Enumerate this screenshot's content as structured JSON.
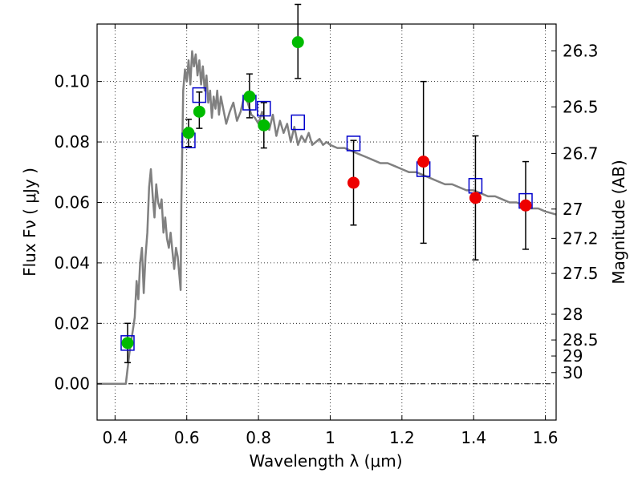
{
  "chart_data": {
    "type": "scatter",
    "xlabel": "Wavelength  λ (μm)",
    "ylabel_left": "Flux  Fν  ( μJy )",
    "ylabel_right": "Magnitude (AB)",
    "xlim": [
      0.35,
      1.63
    ],
    "ylim": [
      -0.012,
      0.119
    ],
    "grid": true,
    "x_ticks": [
      0.4,
      0.6,
      0.8,
      1.0,
      1.2,
      1.4,
      1.6
    ],
    "x_tick_labels": [
      "0.4",
      "0.6",
      "0.8",
      "1",
      "1.2",
      "1.4",
      "1.6"
    ],
    "y_ticks": [
      0.0,
      0.02,
      0.04,
      0.06,
      0.08,
      0.1
    ],
    "y_tick_labels": [
      "0.00",
      "0.02",
      "0.04",
      "0.06",
      "0.08",
      "0.10"
    ],
    "right_ticks": [
      {
        "label": "26.3",
        "flux": 0.1101
      },
      {
        "label": "26.5",
        "flux": 0.0916
      },
      {
        "label": "26.7",
        "flux": 0.0762
      },
      {
        "label": "27",
        "flux": 0.0578
      },
      {
        "label": "27.2",
        "flux": 0.0481
      },
      {
        "label": "27.5",
        "flux": 0.0365
      },
      {
        "label": "28",
        "flux": 0.023
      },
      {
        "label": "28.5",
        "flux": 0.0145
      },
      {
        "label": "29",
        "flux": 0.0092
      },
      {
        "label": "30",
        "flux": 0.0037
      }
    ],
    "series": [
      {
        "type": "line",
        "color": "#808080",
        "x": [
          0.35,
          0.43,
          0.44,
          0.45,
          0.455,
          0.46,
          0.465,
          0.47,
          0.475,
          0.48,
          0.485,
          0.49,
          0.495,
          0.5,
          0.505,
          0.51,
          0.515,
          0.52,
          0.525,
          0.53,
          0.535,
          0.54,
          0.545,
          0.55,
          0.555,
          0.56,
          0.565,
          0.57,
          0.575,
          0.58,
          0.583,
          0.585,
          0.59,
          0.595,
          0.6,
          0.605,
          0.61,
          0.615,
          0.62,
          0.625,
          0.63,
          0.635,
          0.64,
          0.645,
          0.65,
          0.655,
          0.66,
          0.665,
          0.67,
          0.675,
          0.68,
          0.685,
          0.69,
          0.695,
          0.7,
          0.71,
          0.72,
          0.73,
          0.74,
          0.75,
          0.76,
          0.77,
          0.78,
          0.79,
          0.8,
          0.81,
          0.82,
          0.83,
          0.84,
          0.85,
          0.86,
          0.87,
          0.88,
          0.89,
          0.9,
          0.91,
          0.92,
          0.93,
          0.94,
          0.95,
          0.96,
          0.97,
          0.98,
          0.99,
          1.0,
          1.02,
          1.04,
          1.06,
          1.08,
          1.1,
          1.12,
          1.14,
          1.16,
          1.18,
          1.2,
          1.22,
          1.24,
          1.26,
          1.28,
          1.3,
          1.32,
          1.34,
          1.36,
          1.38,
          1.4,
          1.42,
          1.44,
          1.46,
          1.48,
          1.5,
          1.52,
          1.54,
          1.56,
          1.58,
          1.6,
          1.63
        ],
        "y": [
          0.0,
          0.0,
          0.01,
          0.018,
          0.022,
          0.034,
          0.028,
          0.04,
          0.045,
          0.03,
          0.042,
          0.05,
          0.065,
          0.071,
          0.062,
          0.055,
          0.066,
          0.06,
          0.058,
          0.061,
          0.05,
          0.055,
          0.048,
          0.045,
          0.05,
          0.044,
          0.038,
          0.045,
          0.042,
          0.035,
          0.031,
          0.06,
          0.097,
          0.104,
          0.1,
          0.107,
          0.099,
          0.11,
          0.105,
          0.109,
          0.102,
          0.107,
          0.099,
          0.105,
          0.097,
          0.102,
          0.093,
          0.097,
          0.088,
          0.095,
          0.091,
          0.097,
          0.089,
          0.095,
          0.092,
          0.086,
          0.09,
          0.093,
          0.087,
          0.09,
          0.095,
          0.093,
          0.089,
          0.088,
          0.086,
          0.09,
          0.086,
          0.084,
          0.089,
          0.082,
          0.087,
          0.083,
          0.086,
          0.08,
          0.085,
          0.079,
          0.082,
          0.08,
          0.083,
          0.079,
          0.08,
          0.081,
          0.079,
          0.08,
          0.079,
          0.078,
          0.078,
          0.077,
          0.076,
          0.075,
          0.074,
          0.073,
          0.073,
          0.072,
          0.071,
          0.07,
          0.07,
          0.069,
          0.068,
          0.067,
          0.066,
          0.066,
          0.065,
          0.064,
          0.064,
          0.063,
          0.062,
          0.062,
          0.061,
          0.06,
          0.06,
          0.059,
          0.058,
          0.058,
          0.057,
          0.056
        ]
      },
      {
        "type": "marker",
        "shape": "open-square",
        "color": "#0000cc",
        "x": [
          0.435,
          0.605,
          0.635,
          0.775,
          0.815,
          0.91,
          1.065,
          1.26,
          1.405,
          1.545
        ],
        "y": [
          0.0135,
          0.0805,
          0.0955,
          0.093,
          0.091,
          0.0865,
          0.0795,
          0.071,
          0.0655,
          0.0605
        ]
      },
      {
        "type": "marker",
        "shape": "circle",
        "color": "#00bb00",
        "x": [
          0.435,
          0.605,
          0.635,
          0.775,
          0.815,
          0.91
        ],
        "y": [
          0.0135,
          0.083,
          0.09,
          0.095,
          0.0855,
          0.113
        ],
        "err_low": [
          0.0065,
          0.0045,
          0.0055,
          0.007,
          0.0075,
          0.012
        ],
        "err_high": [
          0.0065,
          0.0045,
          0.0065,
          0.0075,
          0.0075,
          0.0125
        ]
      },
      {
        "type": "marker",
        "shape": "circle",
        "color": "#ee0000",
        "x": [
          1.065,
          1.26,
          1.405,
          1.545
        ],
        "y": [
          0.0665,
          0.0735,
          0.0615,
          0.059
        ],
        "err_low": [
          0.014,
          0.027,
          0.0205,
          0.0145
        ],
        "err_high": [
          0.014,
          0.0265,
          0.0205,
          0.0145
        ]
      }
    ]
  }
}
